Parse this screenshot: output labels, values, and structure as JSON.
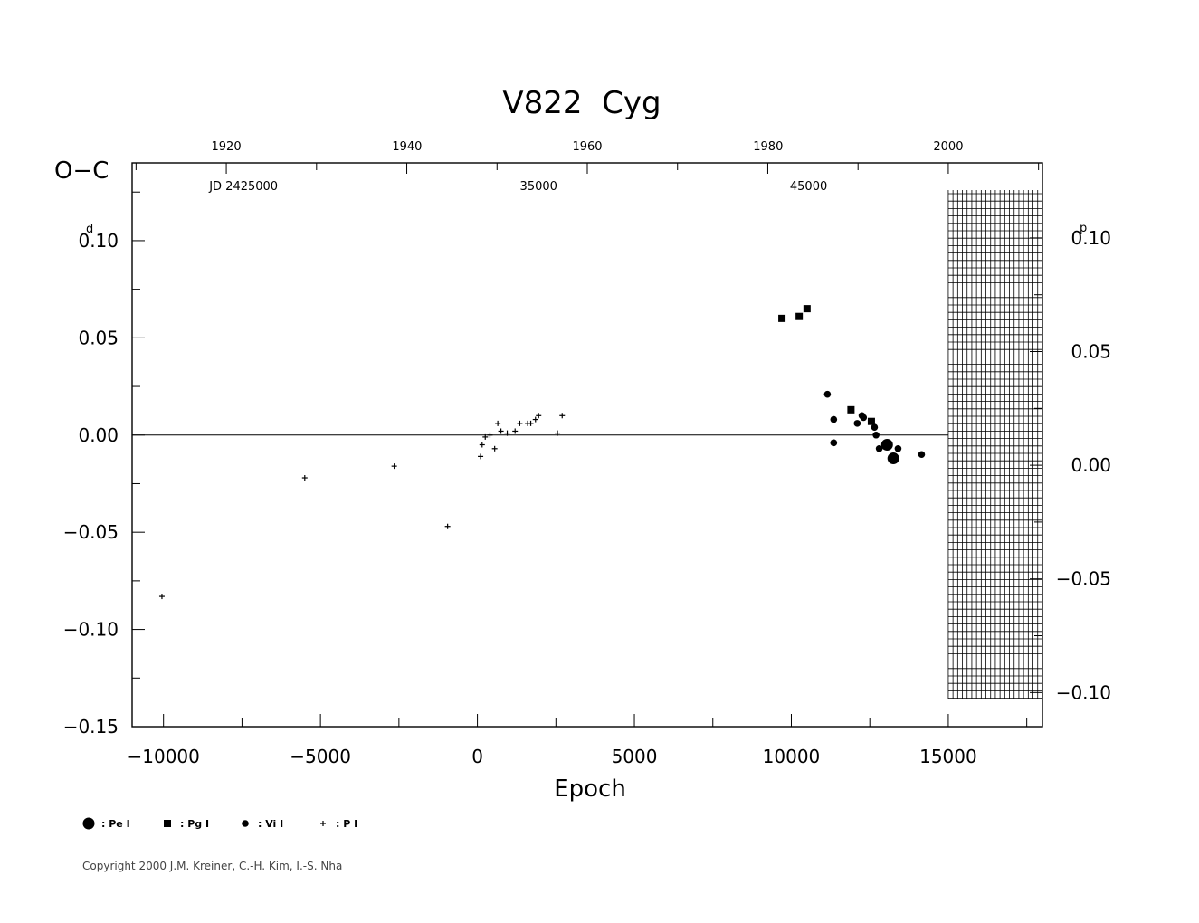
{
  "chart_data": {
    "type": "scatter",
    "title": "V822  Cyg",
    "xlabel": "Epoch",
    "ylabel": "O−C",
    "ylabel_unit_left": "d",
    "ylabel_unit_right": "p",
    "xlim": [
      -11000,
      18000
    ],
    "ylim": [
      -0.15,
      0.14
    ],
    "right_ylim_phase": [
      -0.115,
      0.133
    ],
    "x_ticks": [
      -10000,
      -5000,
      0,
      5000,
      10000,
      15000
    ],
    "x_tick_labels": [
      "−10000",
      "−5000",
      "0",
      "5000",
      "10000",
      "15000"
    ],
    "y_ticks": [
      -0.15,
      -0.1,
      -0.05,
      0.0,
      0.05,
      0.1
    ],
    "y_tick_labels": [
      "−0.15",
      "−0.10",
      "−0.05",
      "0.00",
      "0.05",
      "0.10"
    ],
    "right_y_ticks": [
      -0.1,
      -0.05,
      0.0,
      0.05,
      0.1
    ],
    "right_y_tick_labels": [
      "−0.10",
      "−0.05",
      "0.00",
      "0.05",
      "0.10"
    ],
    "top_year_ticks": [
      1920,
      1940,
      1960,
      1980,
      2000
    ],
    "top_year_labels": [
      "1920",
      "1940",
      "1960",
      "1980",
      "2000"
    ],
    "top_year_epochs": [
      -8000,
      -2240,
      3500,
      9260,
      15000
    ],
    "jd_labels": [
      "JD  2425000",
      "35000",
      "45000"
    ],
    "jd_label_epochs": [
      -7450,
      1950,
      10550
    ],
    "shaded_region_x": [
      15000,
      18000
    ],
    "zero_line": true,
    "series": [
      {
        "name": ": Pe I",
        "marker": "large-circle",
        "points": [
          [
            13050,
            -0.005
          ],
          [
            13250,
            -0.012
          ]
        ]
      },
      {
        "name": ": Pg I",
        "marker": "square",
        "points": [
          [
            9700,
            0.06
          ],
          [
            10250,
            0.061
          ],
          [
            10500,
            0.065
          ],
          [
            11900,
            0.013
          ],
          [
            12550,
            0.007
          ]
        ]
      },
      {
        "name": ": Vi I",
        "marker": "small-circle",
        "points": [
          [
            11150,
            0.021
          ],
          [
            11350,
            0.008
          ],
          [
            11350,
            -0.004
          ],
          [
            12100,
            0.006
          ],
          [
            12250,
            0.01
          ],
          [
            12300,
            0.009
          ],
          [
            12650,
            0.004
          ],
          [
            12700,
            0.0
          ],
          [
            12800,
            -0.007
          ],
          [
            13400,
            -0.007
          ],
          [
            14150,
            -0.01
          ]
        ]
      },
      {
        "name": ": P I",
        "marker": "plus",
        "points": [
          [
            -10050,
            -0.083
          ],
          [
            -5500,
            -0.022
          ],
          [
            -2650,
            -0.016
          ],
          [
            -950,
            -0.047
          ],
          [
            100,
            -0.011
          ],
          [
            150,
            -0.005
          ],
          [
            250,
            -0.001
          ],
          [
            400,
            0.0
          ],
          [
            550,
            -0.007
          ],
          [
            650,
            0.006
          ],
          [
            750,
            0.002
          ],
          [
            950,
            0.001
          ],
          [
            1200,
            0.002
          ],
          [
            1350,
            0.006
          ],
          [
            1600,
            0.006
          ],
          [
            1700,
            0.006
          ],
          [
            1850,
            0.008
          ],
          [
            1950,
            0.01
          ],
          [
            2550,
            0.001
          ],
          [
            2700,
            0.01
          ]
        ]
      }
    ]
  },
  "copyright": "Copyright 2000 J.M. Kreiner, C.-H. Kim, I.-S. Nha"
}
